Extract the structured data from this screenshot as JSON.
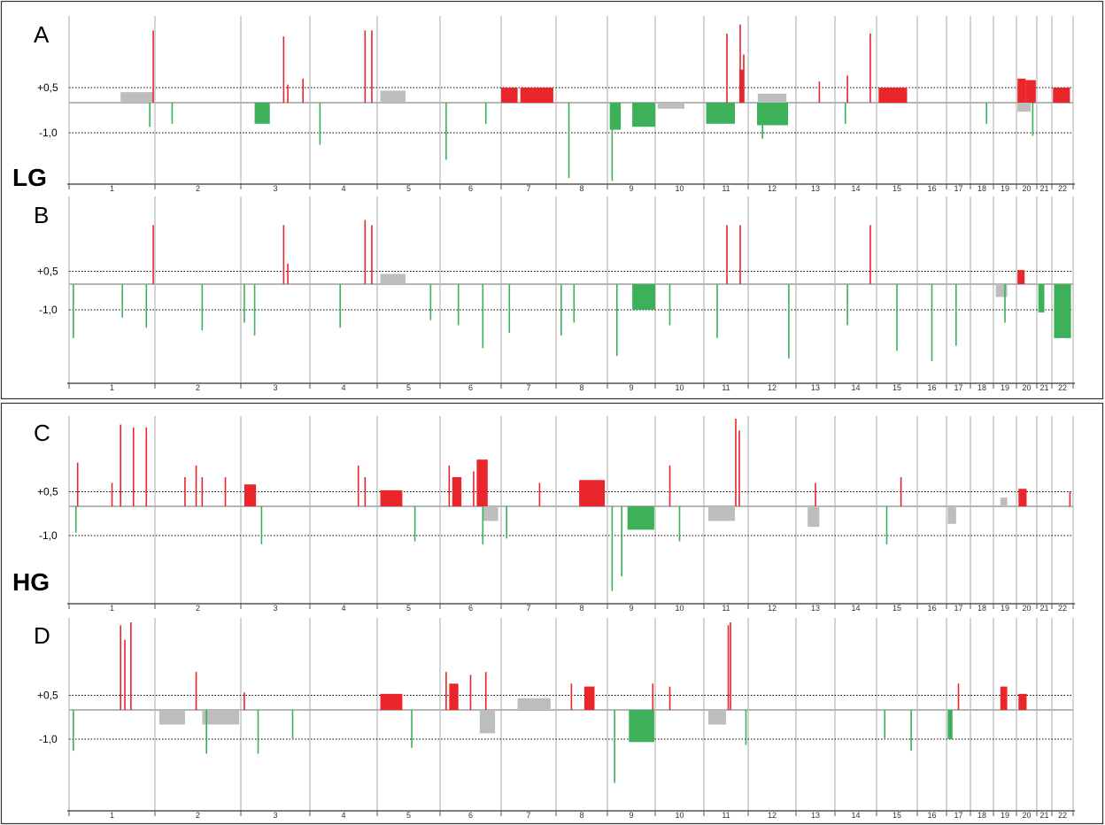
{
  "figure": {
    "groups": [
      {
        "label": "LG",
        "panels": [
          "A",
          "B"
        ]
      },
      {
        "label": "HG",
        "panels": [
          "C",
          "D"
        ]
      }
    ]
  },
  "chart_data": [
    {
      "type": "bar",
      "panel": "A",
      "group": "LG",
      "categories": [
        "1",
        "2",
        "3",
        "4",
        "5",
        "6",
        "7",
        "8",
        "9",
        "10",
        "11",
        "12",
        "13",
        "14",
        "15",
        "16",
        "17",
        "18",
        "19",
        "20",
        "21",
        "22"
      ],
      "threshold_labels": {
        "gain": "+0,5",
        "loss": "-1,0"
      },
      "thresholds": {
        "gain": 0.5,
        "loss": -1.0
      },
      "colors": {
        "gain": "#e8262c",
        "loss": "#3db15a",
        "neutral": "#bdbdbd"
      },
      "gains": [
        {
          "chr": "1",
          "pos": 0.98,
          "value": 2.4
        },
        {
          "chr": "3",
          "pos": 0.62,
          "value": 2.2
        },
        {
          "chr": "3",
          "pos": 0.68,
          "value": 0.6
        },
        {
          "chr": "3",
          "pos": 0.9,
          "value": 0.8
        },
        {
          "chr": "4",
          "pos": 0.82,
          "value": 2.4
        },
        {
          "chr": "4",
          "pos": 0.92,
          "value": 2.4
        },
        {
          "chr": "7",
          "start": 0.0,
          "end": 0.3,
          "value": 0.5
        },
        {
          "chr": "7",
          "start": 0.35,
          "end": 0.95,
          "value": 0.5
        },
        {
          "chr": "11",
          "pos": 0.52,
          "value": 2.3
        },
        {
          "chr": "11",
          "pos": 0.82,
          "value": 2.6
        },
        {
          "chr": "11",
          "start": 0.8,
          "end": 0.9,
          "value": 1.1
        },
        {
          "chr": "11",
          "pos": 0.9,
          "value": 1.6
        },
        {
          "chr": "13",
          "pos": 0.6,
          "value": 0.7
        },
        {
          "chr": "14",
          "pos": 0.3,
          "value": 0.9
        },
        {
          "chr": "14",
          "pos": 0.85,
          "value": 2.3
        },
        {
          "chr": "15",
          "start": 0.05,
          "end": 0.75,
          "value": 0.5
        },
        {
          "chr": "20",
          "start": 0.05,
          "end": 0.45,
          "value": 0.8
        },
        {
          "chr": "20",
          "start": 0.45,
          "end": 0.95,
          "value": 0.75
        },
        {
          "chr": "22",
          "start": 0.05,
          "end": 0.85,
          "value": 0.5
        }
      ],
      "losses": [
        {
          "chr": "1",
          "pos": 0.94,
          "value": -0.8
        },
        {
          "chr": "2",
          "pos": 0.2,
          "value": -0.7
        },
        {
          "chr": "3",
          "start": 0.2,
          "end": 0.42,
          "value": -0.7
        },
        {
          "chr": "4",
          "pos": 0.15,
          "value": -1.4
        },
        {
          "chr": "6",
          "pos": 0.1,
          "value": -1.9
        },
        {
          "chr": "6",
          "pos": 0.75,
          "value": -0.7
        },
        {
          "chr": "8",
          "pos": 0.25,
          "value": -2.5
        },
        {
          "chr": "9",
          "start": 0.05,
          "end": 0.28,
          "value": -0.9
        },
        {
          "chr": "9",
          "start": 0.52,
          "end": 1.0,
          "value": -0.8
        },
        {
          "chr": "9",
          "pos": 0.1,
          "value": -2.6
        },
        {
          "chr": "11",
          "start": 0.05,
          "end": 0.7,
          "value": -0.7
        },
        {
          "chr": "11",
          "start": 1.2,
          "end": 1.9,
          "value": -0.75
        },
        {
          "chr": "12",
          "pos": 0.3,
          "value": -1.2
        },
        {
          "chr": "14",
          "pos": 0.25,
          "value": -0.7
        },
        {
          "chr": "18",
          "pos": 0.7,
          "value": -0.7
        },
        {
          "chr": "20",
          "pos": 0.8,
          "value": -1.1
        }
      ],
      "neutral": [
        {
          "chr": "1",
          "start": 0.6,
          "end": 0.98,
          "value": 0.35
        },
        {
          "chr": "5",
          "start": 0.05,
          "end": 0.45,
          "value": 0.4
        },
        {
          "chr": "12",
          "start": 0.2,
          "end": 0.8,
          "value": 0.3
        },
        {
          "chr": "10",
          "start": 0.05,
          "end": 0.6,
          "value": -0.2
        },
        {
          "chr": "20",
          "start": 0.05,
          "end": 0.7,
          "value": -0.3
        }
      ]
    },
    {
      "type": "bar",
      "panel": "B",
      "group": "LG",
      "categories": [
        "1",
        "2",
        "3",
        "4",
        "5",
        "6",
        "7",
        "8",
        "9",
        "10",
        "11",
        "12",
        "13",
        "14",
        "15",
        "16",
        "17",
        "18",
        "19",
        "20",
        "21",
        "22"
      ],
      "threshold_labels": {
        "gain": "+0,5",
        "loss": "-1,0"
      },
      "thresholds": {
        "gain": 0.5,
        "loss": -1.0
      },
      "colors": {
        "gain": "#e8262c",
        "loss": "#3db15a",
        "neutral": "#bdbdbd"
      },
      "gains": [
        {
          "chr": "1",
          "pos": 0.98,
          "value": 2.3
        },
        {
          "chr": "3",
          "pos": 0.62,
          "value": 2.3
        },
        {
          "chr": "3",
          "pos": 0.68,
          "value": 0.8
        },
        {
          "chr": "4",
          "pos": 0.82,
          "value": 2.5
        },
        {
          "chr": "4",
          "pos": 0.92,
          "value": 2.3
        },
        {
          "chr": "11",
          "pos": 0.52,
          "value": 2.3
        },
        {
          "chr": "11",
          "pos": 0.82,
          "value": 2.3
        },
        {
          "chr": "14",
          "pos": 0.85,
          "value": 2.3
        },
        {
          "chr": "20",
          "start": 0.05,
          "end": 0.4,
          "value": 0.55
        }
      ],
      "losses": [
        {
          "chr": "1",
          "pos": 0.05,
          "value": -2.1
        },
        {
          "chr": "1",
          "pos": 0.62,
          "value": -1.3
        },
        {
          "chr": "1",
          "pos": 0.9,
          "value": -1.7
        },
        {
          "chr": "2",
          "pos": 0.55,
          "value": -1.8
        },
        {
          "chr": "3",
          "pos": 0.05,
          "value": -1.5
        },
        {
          "chr": "3",
          "pos": 0.2,
          "value": -2.0
        },
        {
          "chr": "4",
          "pos": 0.45,
          "value": -1.7
        },
        {
          "chr": "5",
          "pos": 0.85,
          "value": -1.4
        },
        {
          "chr": "6",
          "pos": 0.3,
          "value": -1.6
        },
        {
          "chr": "6",
          "pos": 0.7,
          "value": -2.5
        },
        {
          "chr": "7",
          "pos": 0.15,
          "value": -1.9
        },
        {
          "chr": "8",
          "pos": 0.1,
          "value": -2.0
        },
        {
          "chr": "8",
          "pos": 0.35,
          "value": -1.5
        },
        {
          "chr": "9",
          "start": 0.52,
          "end": 1.0,
          "value": -1.0
        },
        {
          "chr": "9",
          "pos": 0.2,
          "value": -2.8
        },
        {
          "chr": "10",
          "pos": 0.3,
          "value": -1.6
        },
        {
          "chr": "11",
          "pos": 0.3,
          "value": -2.1
        },
        {
          "chr": "12",
          "pos": 0.85,
          "value": -2.9
        },
        {
          "chr": "14",
          "pos": 0.3,
          "value": -1.6
        },
        {
          "chr": "15",
          "pos": 0.5,
          "value": -2.6
        },
        {
          "chr": "16",
          "pos": 0.5,
          "value": -3.0
        },
        {
          "chr": "17",
          "pos": 0.4,
          "value": -2.4
        },
        {
          "chr": "19",
          "pos": 0.5,
          "value": -1.5
        },
        {
          "chr": "21",
          "start": 0.1,
          "end": 0.5,
          "value": -1.1
        },
        {
          "chr": "22",
          "start": 0.1,
          "end": 0.9,
          "value": -2.1
        }
      ],
      "neutral": [
        {
          "chr": "5",
          "start": 0.05,
          "end": 0.45,
          "value": 0.4
        },
        {
          "chr": "19",
          "start": 0.1,
          "end": 0.6,
          "value": -0.5
        }
      ]
    },
    {
      "type": "bar",
      "panel": "C",
      "group": "HG",
      "categories": [
        "1",
        "2",
        "3",
        "4",
        "5",
        "6",
        "7",
        "8",
        "9",
        "10",
        "11",
        "12",
        "13",
        "14",
        "15",
        "16",
        "17",
        "18",
        "19",
        "20",
        "21",
        "22"
      ],
      "threshold_labels": {
        "gain": "+0,5",
        "loss": "-1,0"
      },
      "thresholds": {
        "gain": 0.5,
        "loss": -1.0
      },
      "colors": {
        "gain": "#e8262c",
        "loss": "#3db15a",
        "neutral": "#bdbdbd"
      },
      "gains": [
        {
          "chr": "1",
          "pos": 0.1,
          "value": 1.5
        },
        {
          "chr": "1",
          "pos": 0.5,
          "value": 0.8
        },
        {
          "chr": "1",
          "pos": 0.6,
          "value": 2.8
        },
        {
          "chr": "1",
          "pos": 0.75,
          "value": 2.7
        },
        {
          "chr": "1",
          "pos": 0.9,
          "value": 2.7
        },
        {
          "chr": "2",
          "pos": 0.35,
          "value": 1.0
        },
        {
          "chr": "2",
          "pos": 0.48,
          "value": 1.4
        },
        {
          "chr": "2",
          "pos": 0.55,
          "value": 1.0
        },
        {
          "chr": "2",
          "pos": 0.82,
          "value": 1.0
        },
        {
          "chr": "3",
          "start": 0.05,
          "end": 0.22,
          "value": 0.75
        },
        {
          "chr": "4",
          "pos": 0.72,
          "value": 1.4
        },
        {
          "chr": "4",
          "pos": 0.82,
          "value": 1.0
        },
        {
          "chr": "5",
          "start": 0.05,
          "end": 0.4,
          "value": 0.55
        },
        {
          "chr": "6",
          "pos": 0.15,
          "value": 1.4
        },
        {
          "chr": "6",
          "start": 0.2,
          "end": 0.35,
          "value": 1.0
        },
        {
          "chr": "6",
          "pos": 0.55,
          "value": 1.2
        },
        {
          "chr": "6",
          "start": 0.6,
          "end": 0.78,
          "value": 1.6
        },
        {
          "chr": "7",
          "pos": 0.7,
          "value": 0.8
        },
        {
          "chr": "8",
          "start": 0.45,
          "end": 0.95,
          "value": 0.9
        },
        {
          "chr": "10",
          "pos": 0.3,
          "value": 1.4
        },
        {
          "chr": "11",
          "pos": 0.72,
          "value": 3.0
        },
        {
          "chr": "11",
          "pos": 0.8,
          "value": 2.6
        },
        {
          "chr": "13",
          "pos": 0.5,
          "value": 0.8
        },
        {
          "chr": "15",
          "pos": 0.6,
          "value": 1.0
        },
        {
          "chr": "20",
          "start": 0.1,
          "end": 0.5,
          "value": 0.6
        },
        {
          "chr": "22",
          "pos": 0.85,
          "value": 0.5
        }
      ],
      "losses": [
        {
          "chr": "1",
          "pos": 0.08,
          "value": -0.9
        },
        {
          "chr": "3",
          "pos": 0.3,
          "value": -1.3
        },
        {
          "chr": "5",
          "pos": 0.6,
          "value": -1.2
        },
        {
          "chr": "6",
          "pos": 0.7,
          "value": -1.3
        },
        {
          "chr": "7",
          "pos": 0.1,
          "value": -1.1
        },
        {
          "chr": "9",
          "start": 0.42,
          "end": 0.98,
          "value": -0.8
        },
        {
          "chr": "9",
          "pos": 0.1,
          "value": -2.9
        },
        {
          "chr": "9",
          "pos": 0.3,
          "value": -2.4
        },
        {
          "chr": "10",
          "pos": 0.5,
          "value": -1.2
        },
        {
          "chr": "15",
          "pos": 0.25,
          "value": -1.3
        }
      ],
      "neutral": [
        {
          "chr": "6",
          "start": 0.7,
          "end": 0.95,
          "value": -0.5
        },
        {
          "chr": "11",
          "start": 0.1,
          "end": 0.7,
          "value": -0.5
        },
        {
          "chr": "13",
          "start": 0.3,
          "end": 0.6,
          "value": -0.7
        },
        {
          "chr": "17",
          "start": 0.05,
          "end": 0.4,
          "value": -0.6
        },
        {
          "chr": "19",
          "start": 0.3,
          "end": 0.6,
          "value": 0.3
        }
      ]
    },
    {
      "type": "bar",
      "panel": "D",
      "group": "HG",
      "categories": [
        "1",
        "2",
        "3",
        "4",
        "5",
        "6",
        "7",
        "8",
        "9",
        "10",
        "11",
        "12",
        "13",
        "14",
        "15",
        "16",
        "17",
        "18",
        "19",
        "20",
        "21",
        "22"
      ],
      "threshold_labels": {
        "gain": "+0,5",
        "loss": "-1,0"
      },
      "thresholds": {
        "gain": 0.5,
        "loss": -1.0
      },
      "colors": {
        "gain": "#e8262c",
        "loss": "#3db15a",
        "neutral": "#bdbdbd"
      },
      "gains": [
        {
          "chr": "1",
          "pos": 0.6,
          "value": 2.9
        },
        {
          "chr": "1",
          "pos": 0.65,
          "value": 2.4
        },
        {
          "chr": "1",
          "pos": 0.72,
          "value": 3.0
        },
        {
          "chr": "2",
          "pos": 0.48,
          "value": 1.3
        },
        {
          "chr": "3",
          "pos": 0.05,
          "value": 0.6
        },
        {
          "chr": "5",
          "start": 0.05,
          "end": 0.4,
          "value": 0.55
        },
        {
          "chr": "6",
          "pos": 0.1,
          "value": 1.3
        },
        {
          "chr": "6",
          "start": 0.15,
          "end": 0.3,
          "value": 0.9
        },
        {
          "chr": "6",
          "pos": 0.5,
          "value": 1.2
        },
        {
          "chr": "6",
          "pos": 0.75,
          "value": 1.3
        },
        {
          "chr": "8",
          "pos": 0.3,
          "value": 0.9
        },
        {
          "chr": "8",
          "start": 0.55,
          "end": 0.75,
          "value": 0.8
        },
        {
          "chr": "9",
          "pos": 0.95,
          "value": 0.9
        },
        {
          "chr": "10",
          "pos": 0.3,
          "value": 0.8
        },
        {
          "chr": "11",
          "pos": 0.55,
          "value": 2.9
        },
        {
          "chr": "11",
          "pos": 0.6,
          "value": 3.0
        },
        {
          "chr": "17",
          "pos": 0.5,
          "value": 0.9
        },
        {
          "chr": "19",
          "start": 0.3,
          "end": 0.6,
          "value": 0.8
        },
        {
          "chr": "20",
          "start": 0.1,
          "end": 0.5,
          "value": 0.55
        }
      ],
      "losses": [
        {
          "chr": "1",
          "pos": 0.05,
          "value": -1.4
        },
        {
          "chr": "2",
          "pos": 0.6,
          "value": -1.5
        },
        {
          "chr": "3",
          "pos": 0.25,
          "value": -1.5
        },
        {
          "chr": "3",
          "pos": 0.75,
          "value": -1.0
        },
        {
          "chr": "5",
          "pos": 0.55,
          "value": -1.3
        },
        {
          "chr": "9",
          "start": 0.45,
          "end": 0.98,
          "value": -1.1
        },
        {
          "chr": "9",
          "pos": 0.15,
          "value": -2.5
        },
        {
          "chr": "11",
          "pos": 0.95,
          "value": -1.2
        },
        {
          "chr": "15",
          "pos": 0.2,
          "value": -1.0
        },
        {
          "chr": "15",
          "pos": 0.85,
          "value": -1.4
        },
        {
          "chr": "17",
          "start": 0.05,
          "end": 0.25,
          "value": -1.0
        }
      ],
      "neutral": [
        {
          "chr": "2",
          "start": 0.05,
          "end": 0.35,
          "value": -0.5
        },
        {
          "chr": "2",
          "start": 0.55,
          "end": 0.98,
          "value": -0.5
        },
        {
          "chr": "6",
          "start": 0.65,
          "end": 0.9,
          "value": -0.8
        },
        {
          "chr": "7",
          "start": 0.3,
          "end": 0.9,
          "value": 0.4
        },
        {
          "chr": "11",
          "start": 0.1,
          "end": 0.5,
          "value": -0.5
        }
      ]
    }
  ]
}
